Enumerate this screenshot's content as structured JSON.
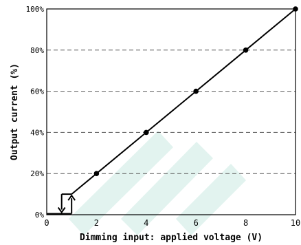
{
  "chart_data": {
    "type": "line",
    "xlabel": "Dimming input: applied voltage (V)",
    "ylabel": "Output current (%)",
    "xlim": [
      0,
      10
    ],
    "ylim": [
      0,
      100
    ],
    "x_ticks": [
      "0",
      "2",
      "4",
      "6",
      "8",
      "10"
    ],
    "y_ticks": [
      "0%",
      "20%",
      "40%",
      "60%",
      "80%",
      "100%"
    ],
    "grid": "horizontal dashed",
    "series": [
      {
        "x": [
          1,
          2,
          4,
          6,
          8,
          10
        ],
        "y": [
          10,
          20,
          40,
          60,
          80,
          100
        ],
        "markers": [
          2,
          4,
          6,
          8,
          10
        ]
      }
    ],
    "hysteresis": {
      "x_low": 0.6,
      "x_high": 1,
      "y_on": 10,
      "y_off": 0
    },
    "colors": {
      "line": "#000000",
      "grid": "#555555",
      "watermark": "#e2f3ef"
    }
  }
}
